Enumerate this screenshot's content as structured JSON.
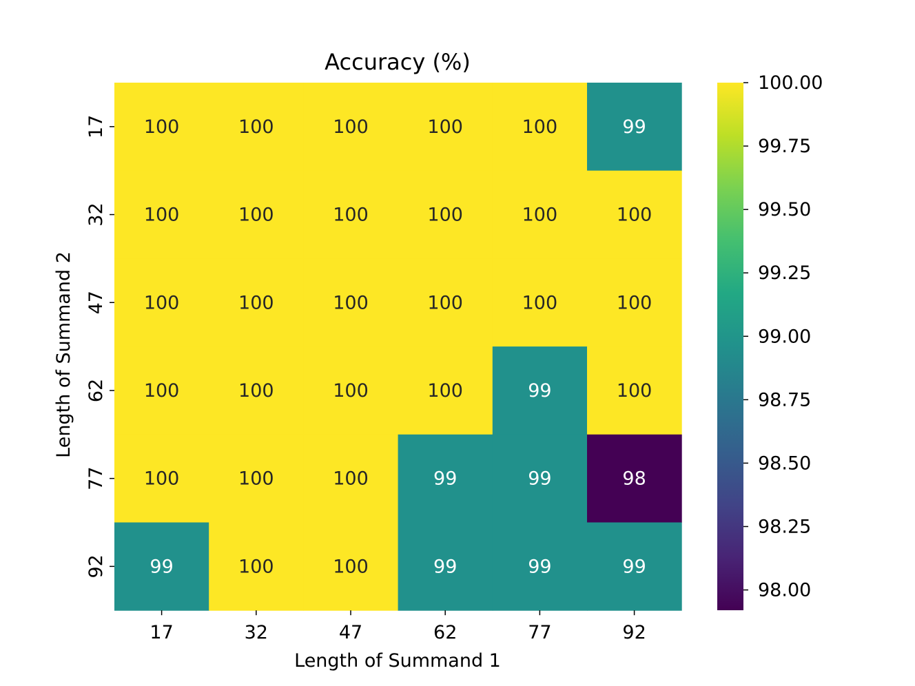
{
  "chart_data": {
    "type": "heatmap",
    "title": "Accuracy (%)",
    "xlabel": "Length of Summand 1",
    "ylabel": "Length of Summand 2",
    "x_categories": [
      "17",
      "32",
      "47",
      "62",
      "77",
      "92"
    ],
    "y_categories": [
      "17",
      "32",
      "47",
      "62",
      "77",
      "92"
    ],
    "values": [
      [
        100,
        100,
        100,
        100,
        100,
        99
      ],
      [
        100,
        100,
        100,
        100,
        100,
        100
      ],
      [
        100,
        100,
        100,
        100,
        100,
        100
      ],
      [
        100,
        100,
        100,
        100,
        99,
        100
      ],
      [
        100,
        100,
        100,
        99,
        99,
        98
      ],
      [
        99,
        100,
        100,
        99,
        99,
        99
      ]
    ],
    "colormap": "viridis",
    "colorbar": {
      "vmin": 97.92,
      "vmax": 100.0,
      "ticks": [
        "98.00",
        "98.25",
        "98.50",
        "98.75",
        "99.00",
        "99.25",
        "99.50",
        "99.75",
        "100.00"
      ]
    },
    "colors": {
      "v100": "#fde725",
      "v99": "#21918c",
      "v98": "#440154"
    },
    "annotation_colors": {
      "dark": "#262626",
      "light": "#ffffff"
    }
  }
}
